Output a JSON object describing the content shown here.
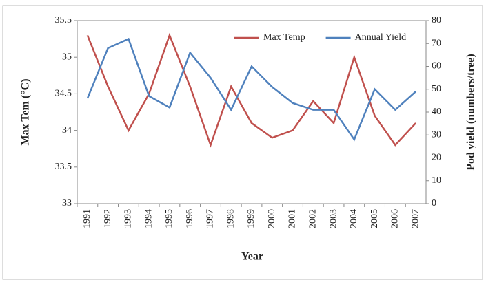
{
  "chart_data": {
    "type": "line",
    "categories": [
      "1991",
      "1992",
      "1993",
      "1994",
      "1995",
      "1996",
      "1997",
      "1998",
      "1999",
      "2000",
      "2001",
      "2002",
      "2003",
      "2004",
      "2005",
      "2006",
      "2007"
    ],
    "series": [
      {
        "name": "Max Temp",
        "color": "#c0504d",
        "values": [
          35.3,
          34.6,
          34.0,
          34.5,
          35.3,
          34.6,
          33.8,
          34.6,
          34.1,
          33.9,
          34.0,
          34.4,
          34.1,
          35.0,
          34.2,
          33.8,
          34.1
        ]
      },
      {
        "name": "Annual Yield",
        "color": "#4f81bd",
        "axis": "y2",
        "values": [
          46,
          68,
          72,
          47,
          42,
          66,
          55,
          41,
          60,
          51,
          44,
          41,
          41,
          28,
          50,
          41,
          49
        ]
      }
    ],
    "ylabel": "Max Tem (°C)",
    "y2label": "Pod yield  (numbers/tree)",
    "xlabel": "Year",
    "ylim": [
      33,
      35.5
    ],
    "yticks": [
      33,
      33.5,
      34,
      34.5,
      35,
      35.5
    ],
    "y2lim": [
      0,
      80
    ],
    "y2ticks": [
      0,
      10,
      20,
      30,
      40,
      50,
      60,
      70,
      80
    ],
    "legend": "top-right",
    "grid": false
  }
}
